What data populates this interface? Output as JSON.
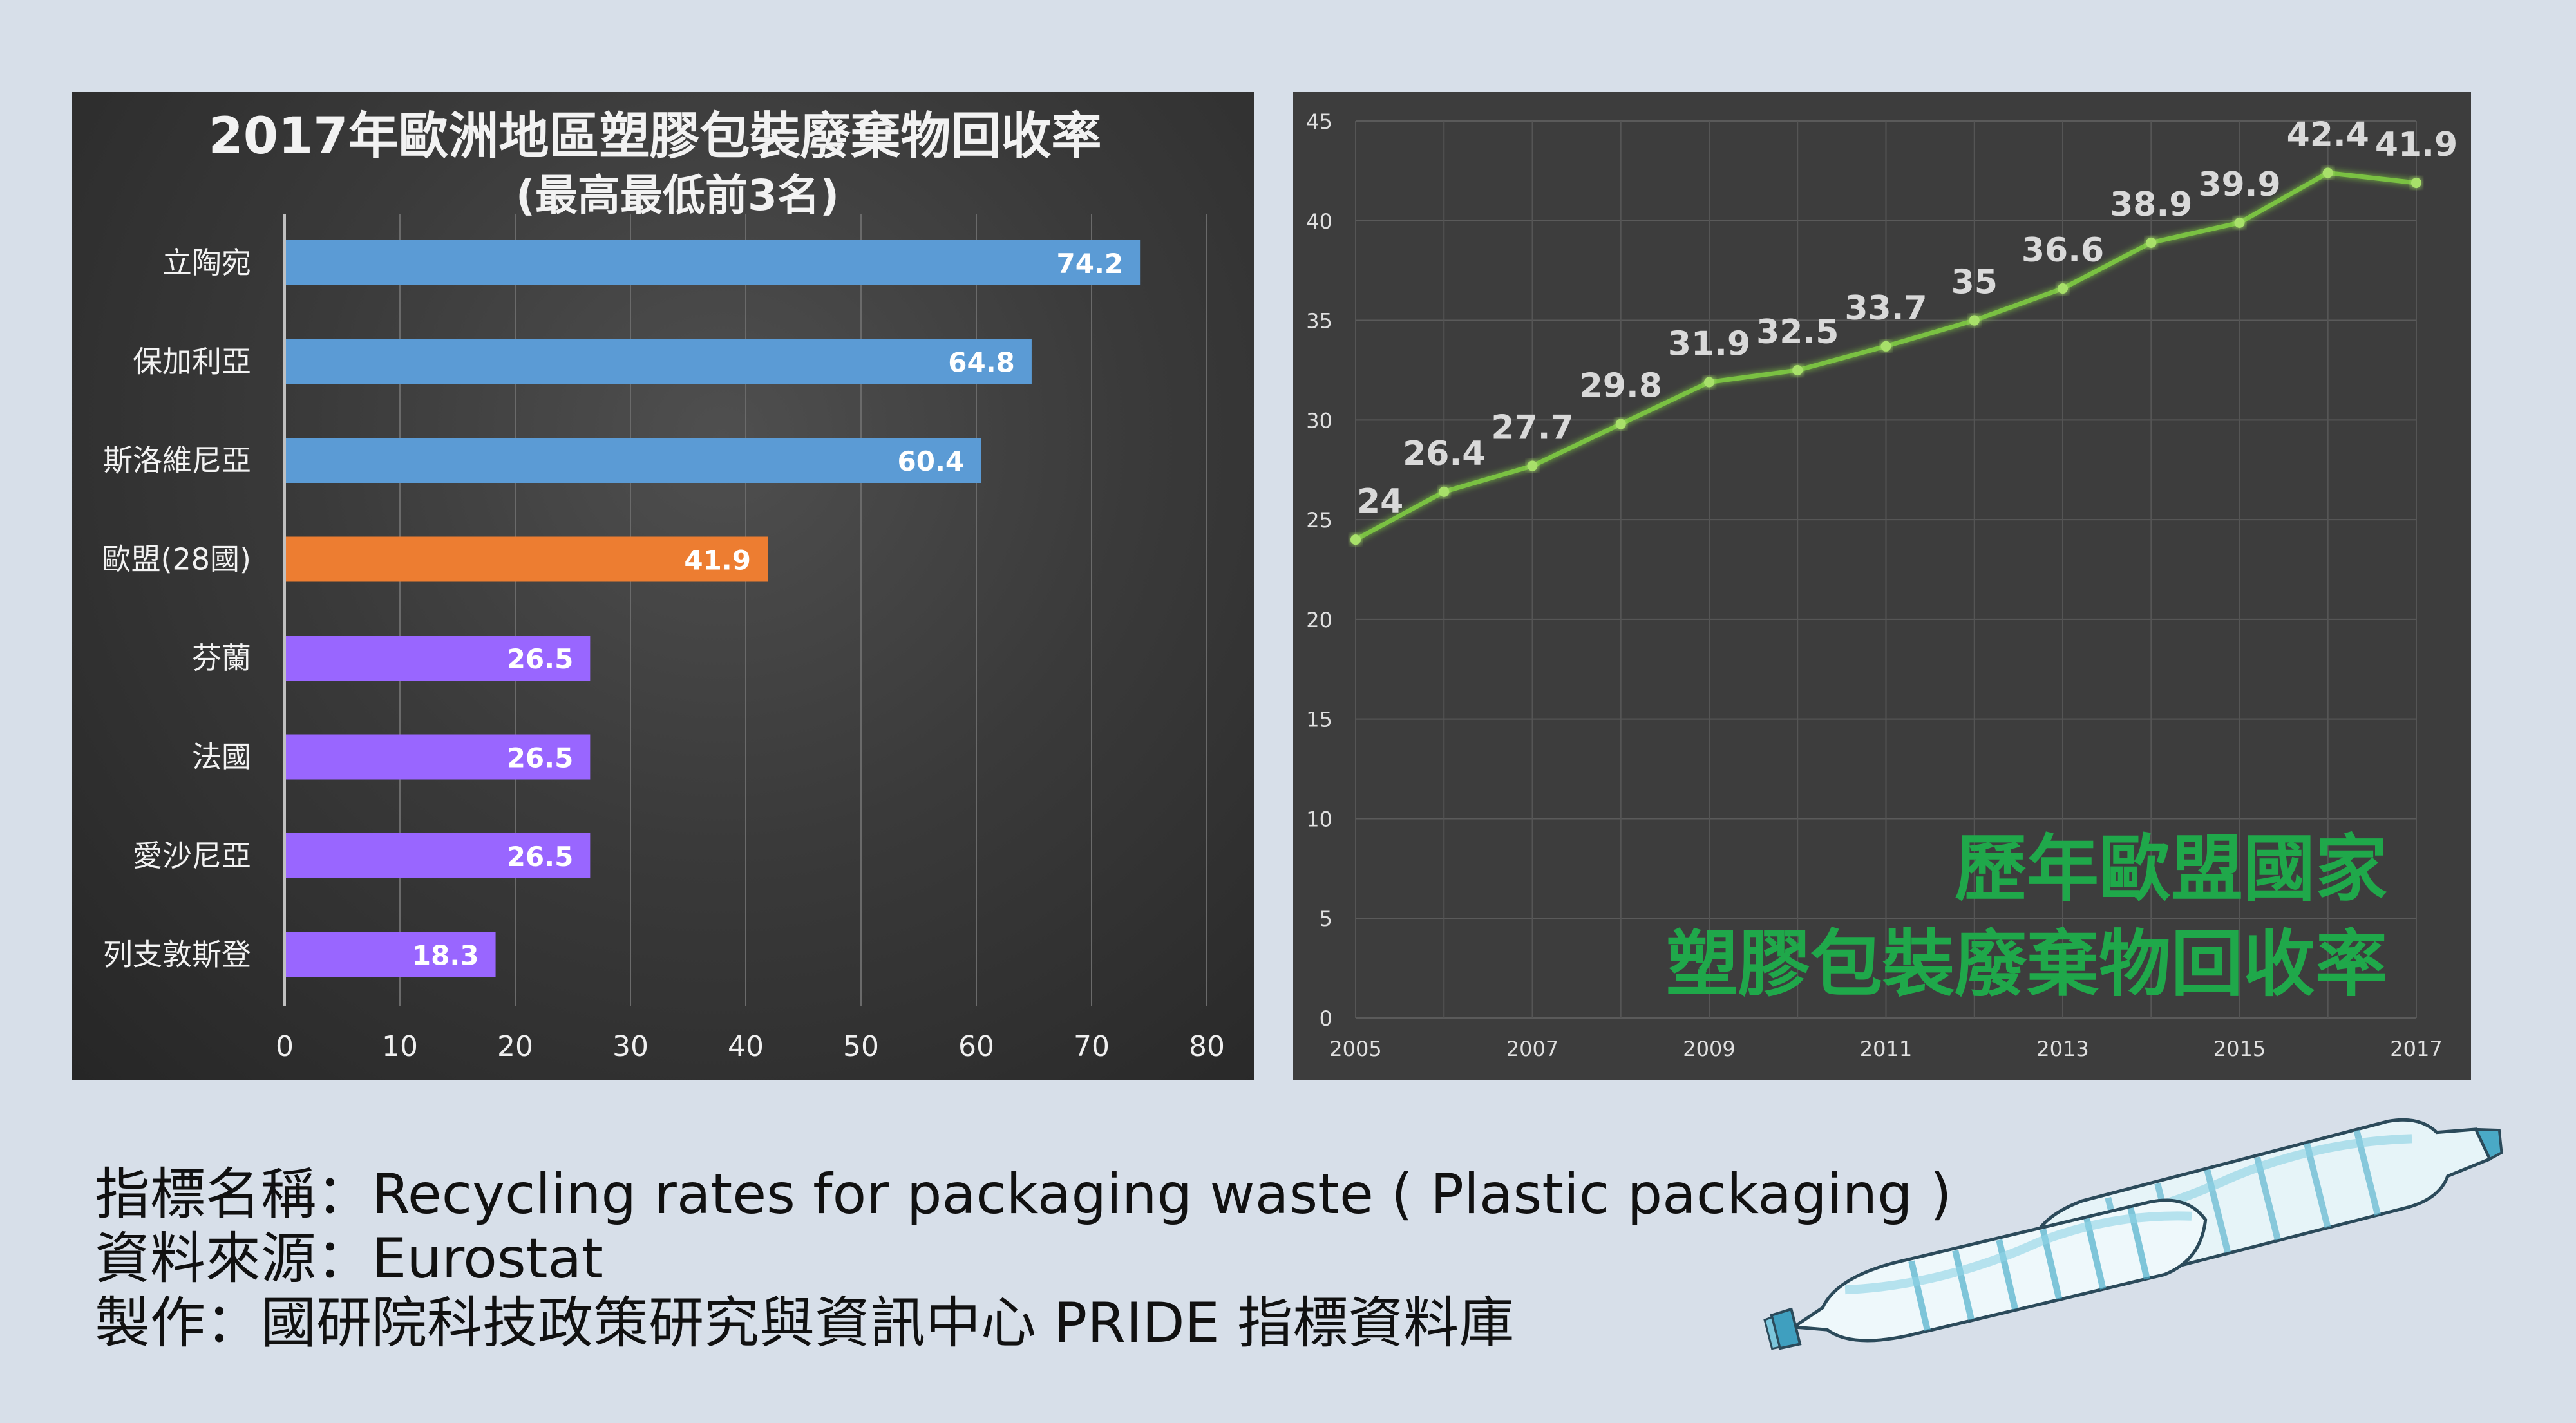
{
  "chart_data": [
    {
      "type": "bar",
      "orientation": "horizontal",
      "title": "2017年歐洲地區塑膠包裝廢棄物回收率",
      "subtitle": "(最高最低前3名)",
      "categories": [
        "立陶宛",
        "保加利亞",
        "斯洛維尼亞",
        "歐盟(28國)",
        "芬蘭",
        "法國",
        "愛沙尼亞",
        "列支敦斯登"
      ],
      "values": [
        74.2,
        64.8,
        60.4,
        41.9,
        26.5,
        26.5,
        26.5,
        18.3
      ],
      "data_labels": [
        "74.2",
        "64.8",
        "60.4",
        "41.9",
        "26.5",
        "26.5",
        "26.5",
        "18.3"
      ],
      "colors": [
        "#5b9bd5",
        "#5b9bd5",
        "#5b9bd5",
        "#ed7d31",
        "#9966ff",
        "#9966ff",
        "#9966ff",
        "#9966ff"
      ],
      "xlim": [
        0,
        80
      ],
      "xticks": [
        "0",
        "10",
        "20",
        "30",
        "40",
        "50",
        "60",
        "70",
        "80"
      ],
      "grid": true
    },
    {
      "type": "line",
      "title": "歷年歐盟國家塑膠包裝廢棄物回收率",
      "title_lines": [
        "歷年歐盟國家",
        "塑膠包裝廢棄物回收率"
      ],
      "title_color": "#1fa84a",
      "x": [
        2005,
        2006,
        2007,
        2008,
        2009,
        2010,
        2011,
        2012,
        2013,
        2014,
        2015,
        2016,
        2017
      ],
      "values": [
        24,
        26.4,
        27.7,
        29.8,
        31.9,
        32.5,
        33.7,
        35,
        36.6,
        38.9,
        39.9,
        42.4,
        41.9
      ],
      "data_labels": [
        "24",
        "26.4",
        "27.7",
        "29.8",
        "31.9",
        "32.5",
        "33.7",
        "35",
        "36.6",
        "38.9",
        "39.9",
        "42.4",
        "41.9"
      ],
      "xticks": [
        "2005",
        "2007",
        "2009",
        "2011",
        "2013",
        "2015",
        "2017"
      ],
      "yticks": [
        "0",
        "5",
        "10",
        "15",
        "20",
        "25",
        "30",
        "35",
        "40",
        "45"
      ],
      "ylim": [
        0,
        45
      ],
      "line_color": "#7ac143",
      "grid": true
    }
  ],
  "footer": {
    "indicator": "指標名稱：Recycling rates for packaging waste ( Plastic packaging )",
    "source": "資料來源：Eurostat",
    "producer": "製作：國研院科技政策研究與資訊中心 PRIDE 指標資料庫"
  }
}
